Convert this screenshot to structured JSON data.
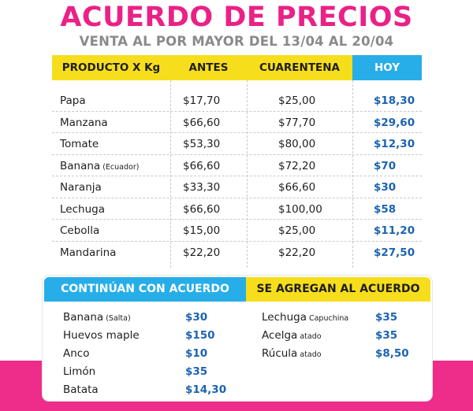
{
  "title": "ACUERDO DE PRECIOS",
  "subtitle": "VENTA AL POR MAYOR DEL 13/04 AL 20/04",
  "table": {
    "headers": {
      "product": "PRODUCTO X Kg",
      "antes": "ANTES",
      "cuarentena": "CUARENTENA",
      "hoy": "HOY"
    },
    "rows": [
      {
        "product": "Papa",
        "note": "",
        "antes": "$17,70",
        "cuarentena": "$25,00",
        "hoy": "$18,30"
      },
      {
        "product": "Manzana",
        "note": "",
        "antes": "$66,60",
        "cuarentena": "$77,70",
        "hoy": "$29,60"
      },
      {
        "product": "Tomate",
        "note": "",
        "antes": "$53,30",
        "cuarentena": "$80,00",
        "hoy": "$12,30"
      },
      {
        "product": "Banana",
        "note": "(Ecuador)",
        "antes": "$66,60",
        "cuarentena": "$72,20",
        "hoy": "$70"
      },
      {
        "product": "Naranja",
        "note": "",
        "antes": "$33,30",
        "cuarentena": "$66,60",
        "hoy": "$30"
      },
      {
        "product": "Lechuga",
        "note": "",
        "antes": "$66,60",
        "cuarentena": "$100,00",
        "hoy": "$58"
      },
      {
        "product": "Cebolla",
        "note": "",
        "antes": "$15,00",
        "cuarentena": "$25,00",
        "hoy": "$11,20"
      },
      {
        "product": "Mandarina",
        "note": "",
        "antes": "$22,20",
        "cuarentena": "$22,20",
        "hoy": "$27,50"
      }
    ]
  },
  "continuan": {
    "header": "CONTINÚAN CON ACUERDO",
    "items": [
      {
        "name": "Banana",
        "note": "(Salta)",
        "price": "$30"
      },
      {
        "name": "Huevos maple",
        "note": "",
        "price": "$150"
      },
      {
        "name": "Anco",
        "note": "",
        "price": "$10"
      },
      {
        "name": "Limón",
        "note": "",
        "price": "$35"
      },
      {
        "name": "Batata",
        "note": "",
        "price": "$14,30"
      }
    ]
  },
  "agregan": {
    "header": "SE AGREGAN AL ACUERDO",
    "items": [
      {
        "name": "Lechuga",
        "note": "Capuchina",
        "price": "$35"
      },
      {
        "name": "Acelga",
        "note": "atado",
        "price": "$35"
      },
      {
        "name": "Rúcula",
        "note": "atado",
        "price": "$8,50"
      }
    ]
  },
  "colors": {
    "title": "#ea2187",
    "band": "#ee2d8b",
    "yellow": "#f7de1c",
    "blue": "#27aee8",
    "price_blue": "#1b63b0"
  }
}
